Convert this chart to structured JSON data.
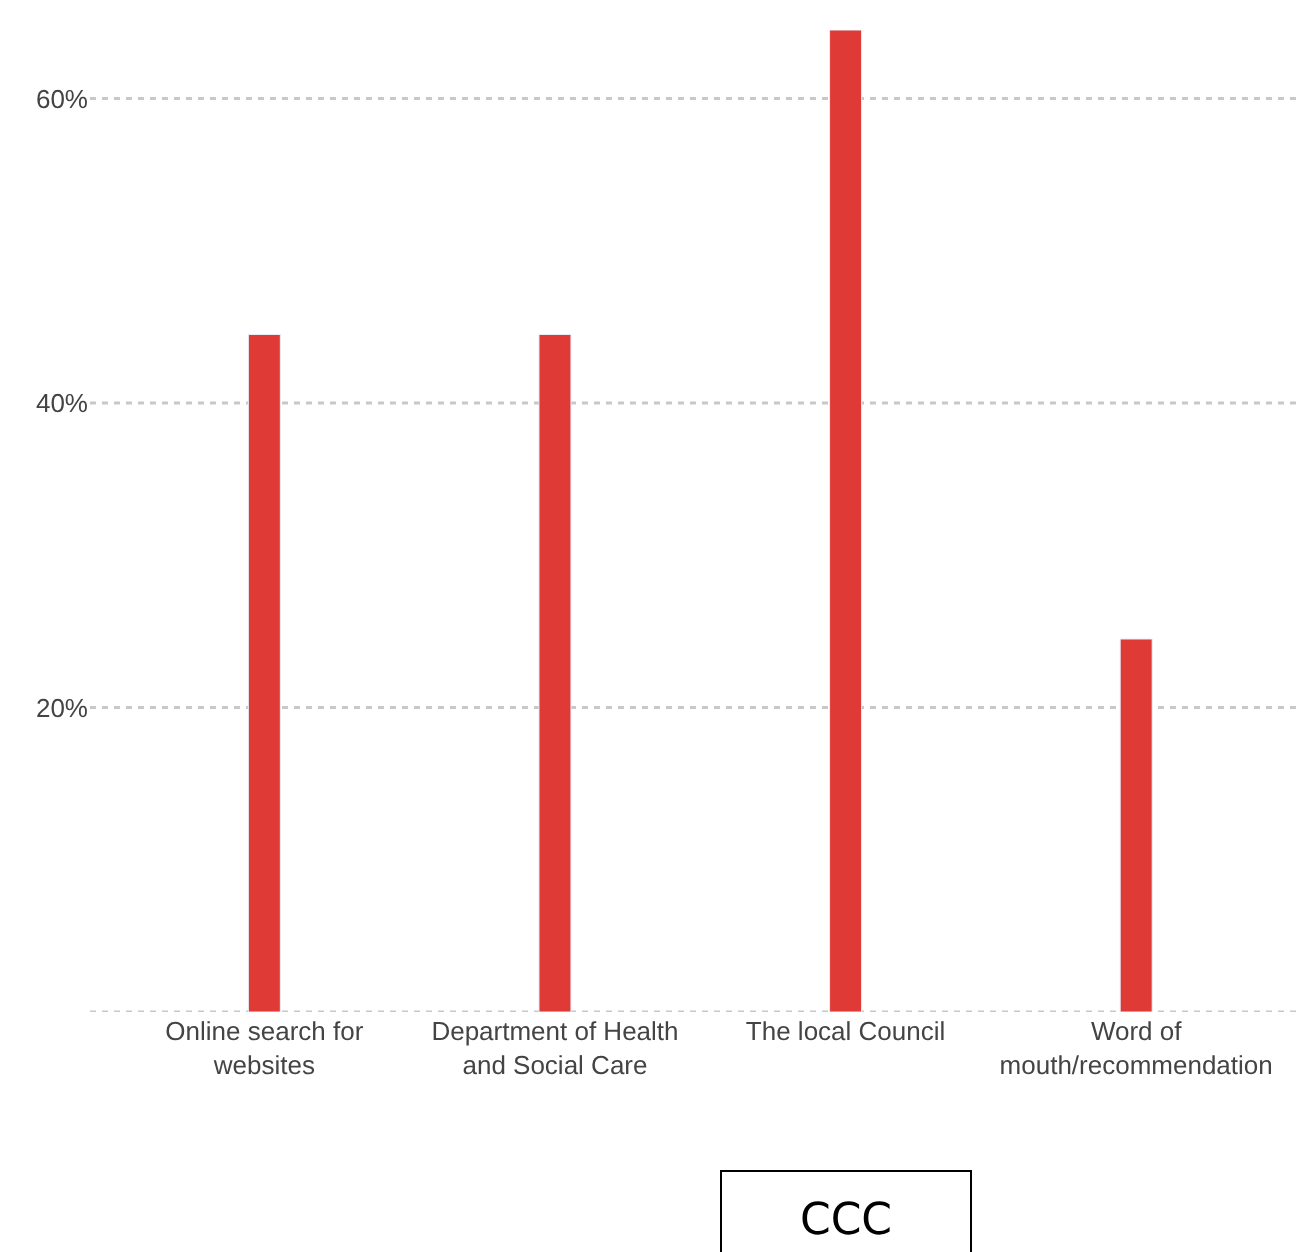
{
  "chart_data": {
    "type": "bar",
    "categories": [
      "Online search for\nwebsites",
      "Department of Health\nand Social Care",
      "The local Council",
      "Word of\nmouth/recommendation"
    ],
    "values": [
      44.5,
      44.5,
      64.5,
      24.5
    ],
    "color": "#e03a36",
    "ylim": [
      0,
      64.5
    ],
    "yticks": [
      {
        "value": 0,
        "label": null
      },
      {
        "value": 20,
        "label": "20%"
      },
      {
        "value": 40,
        "label": "40%"
      },
      {
        "value": 60,
        "label": "60%"
      }
    ],
    "grid": "y",
    "annotations": [
      "CCC"
    ]
  }
}
